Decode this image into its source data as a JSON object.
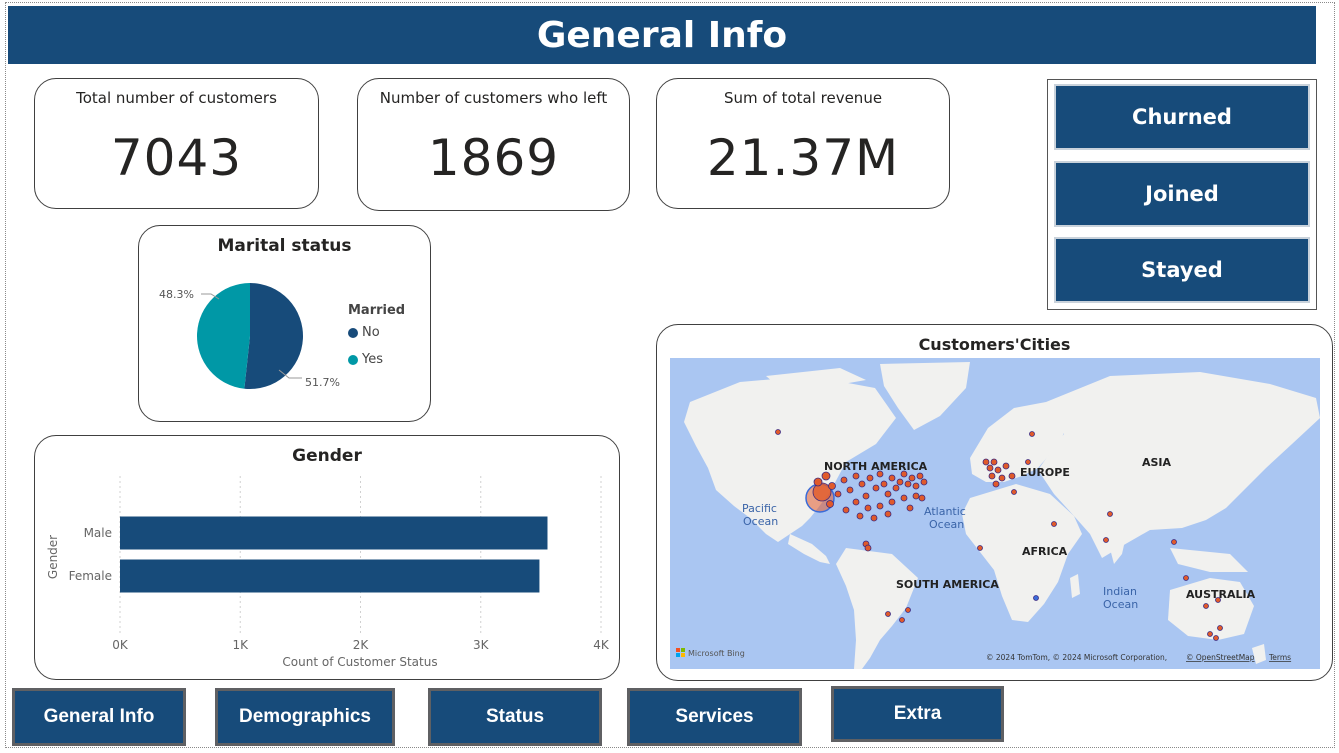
{
  "header": {
    "title": "General Info"
  },
  "kpis": [
    {
      "label": "Total number of customers",
      "value": "7043"
    },
    {
      "label": "Number of customers who left",
      "value": "1869"
    },
    {
      "label": "Sum of total revenue",
      "value": "21.37M"
    }
  ],
  "status_buttons": [
    "Churned",
    "Joined",
    "Stayed"
  ],
  "marital_chart": {
    "title": "Marital status",
    "legend_title": "Married",
    "chart_data": {
      "type": "pie",
      "title": "Marital status",
      "slices": [
        {
          "name": "No",
          "value": 51.7,
          "label": "51.7%",
          "color": "#174b7a"
        },
        {
          "name": "Yes",
          "value": 48.3,
          "label": "48.3%",
          "color": "#0098a6"
        }
      ]
    }
  },
  "gender_chart": {
    "title": "Gender",
    "chart_data": {
      "type": "bar",
      "orientation": "horizontal",
      "title": "Gender",
      "categories": [
        "Male",
        "Female"
      ],
      "values": [
        3555,
        3488
      ],
      "xlabel": "Count of Customer Status",
      "ylabel": "Gender",
      "xlim": [
        0,
        4000
      ],
      "ticks": [
        "0K",
        "1K",
        "2K",
        "3K",
        "4K"
      ],
      "color": "#174b7a",
      "grid": true
    }
  },
  "map": {
    "title": "Customers'Cities",
    "labels": {
      "north_america": "NORTH AMERICA",
      "europe": "EUROPE",
      "asia": "ASIA",
      "africa": "AFRICA",
      "south_america": "SOUTH AMERICA",
      "australia": "AUSTRALIA",
      "pacific_1": "Pacific",
      "pacific_2": "Ocean",
      "atlantic_1": "Atlantic",
      "atlantic_2": "Ocean",
      "indian_1": "Indian",
      "indian_2": "Ocean"
    },
    "attribution": "© 2024 TomTom, © 2024 Microsoft Corporation,",
    "osm_link": "© OpenStreetMap",
    "terms_link": "Terms",
    "logo": "Microsoft Bing",
    "ocean_color": "#aac6f2",
    "land_color": "#f1f1ef",
    "marker_color": "#e05a2b"
  },
  "nav": [
    "General Info",
    "Demographics",
    "Status",
    "Services",
    "Extra"
  ]
}
